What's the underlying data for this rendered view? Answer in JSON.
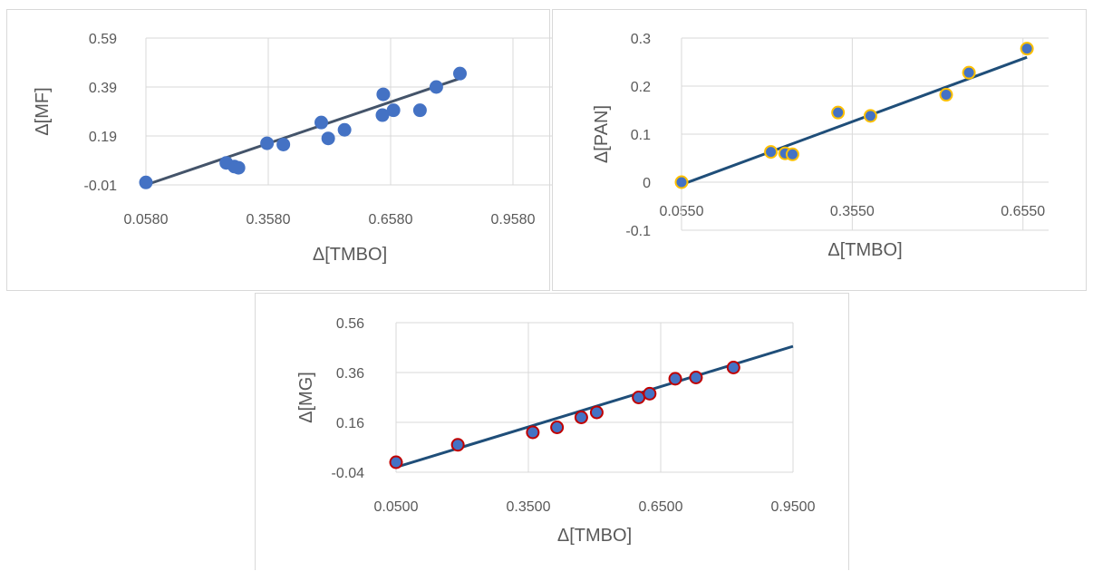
{
  "chart_data": [
    {
      "id": "mf",
      "type": "scatter",
      "xlabel": "Δ[TMBO]",
      "ylabel": "Δ[MF]",
      "x_ticks": [
        "0.0580",
        "0.3580",
        "0.6580",
        "0.9580"
      ],
      "y_ticks": [
        "-0.01",
        "0.19",
        "0.39",
        "0.59"
      ],
      "xlim": [
        0.058,
        1.058
      ],
      "ylim": [
        -0.01,
        0.59
      ],
      "points": [
        {
          "x": 0.058,
          "y": 0.0
        },
        {
          "x": 0.255,
          "y": 0.08
        },
        {
          "x": 0.275,
          "y": 0.065
        },
        {
          "x": 0.285,
          "y": 0.06
        },
        {
          "x": 0.355,
          "y": 0.16
        },
        {
          "x": 0.395,
          "y": 0.155
        },
        {
          "x": 0.488,
          "y": 0.245
        },
        {
          "x": 0.505,
          "y": 0.18
        },
        {
          "x": 0.545,
          "y": 0.215
        },
        {
          "x": 0.638,
          "y": 0.275
        },
        {
          "x": 0.64,
          "y": 0.36
        },
        {
          "x": 0.665,
          "y": 0.295
        },
        {
          "x": 0.73,
          "y": 0.295
        },
        {
          "x": 0.77,
          "y": 0.39
        },
        {
          "x": 0.828,
          "y": 0.445
        }
      ],
      "trendline": [
        {
          "x": 0.058,
          "y": -0.01
        },
        {
          "x": 0.828,
          "y": 0.425
        }
      ],
      "marker_color": "#4472C4",
      "marker_edge": "#4472C4",
      "line_color": "#44546A",
      "grid": true
    },
    {
      "id": "pan",
      "type": "scatter",
      "xlabel": "Δ[TMBO]",
      "ylabel": "Δ[PAN]",
      "x_ticks": [
        "0.0550",
        "0.3550",
        "0.6550"
      ],
      "y_ticks": [
        "-0.1",
        "0",
        "0.1",
        "0.2",
        "0.3"
      ],
      "xlim": [
        0.055,
        0.7
      ],
      "ylim": [
        -0.1,
        0.3
      ],
      "points": [
        {
          "x": 0.055,
          "y": 0.0
        },
        {
          "x": 0.212,
          "y": 0.063
        },
        {
          "x": 0.237,
          "y": 0.06
        },
        {
          "x": 0.25,
          "y": 0.058
        },
        {
          "x": 0.33,
          "y": 0.145
        },
        {
          "x": 0.387,
          "y": 0.138
        },
        {
          "x": 0.52,
          "y": 0.182
        },
        {
          "x": 0.56,
          "y": 0.228
        },
        {
          "x": 0.662,
          "y": 0.278
        }
      ],
      "trendline": [
        {
          "x": 0.055,
          "y": -0.005
        },
        {
          "x": 0.662,
          "y": 0.26
        }
      ],
      "marker_color": "#4472C4",
      "marker_edge": "#FFC000",
      "line_color": "#1F4E79",
      "grid": true
    },
    {
      "id": "mg",
      "type": "scatter",
      "xlabel": "Δ[TMBO]",
      "ylabel": "Δ[MG]",
      "x_ticks": [
        "0.0500",
        "0.3500",
        "0.6500",
        "0.9500"
      ],
      "y_ticks": [
        "-0.04",
        "0.16",
        "0.36",
        "0.56"
      ],
      "xlim": [
        0.05,
        0.95
      ],
      "ylim": [
        -0.04,
        0.56
      ],
      "points": [
        {
          "x": 0.05,
          "y": 0.0
        },
        {
          "x": 0.19,
          "y": 0.07
        },
        {
          "x": 0.36,
          "y": 0.12
        },
        {
          "x": 0.415,
          "y": 0.14
        },
        {
          "x": 0.47,
          "y": 0.18
        },
        {
          "x": 0.505,
          "y": 0.2
        },
        {
          "x": 0.6,
          "y": 0.26
        },
        {
          "x": 0.625,
          "y": 0.275
        },
        {
          "x": 0.683,
          "y": 0.335
        },
        {
          "x": 0.73,
          "y": 0.34
        },
        {
          "x": 0.815,
          "y": 0.38
        }
      ],
      "trendline": [
        {
          "x": 0.05,
          "y": -0.02
        },
        {
          "x": 0.95,
          "y": 0.465
        }
      ],
      "marker_color": "#4472C4",
      "marker_edge": "#C00000",
      "line_color": "#1F4E79",
      "grid": true
    }
  ]
}
